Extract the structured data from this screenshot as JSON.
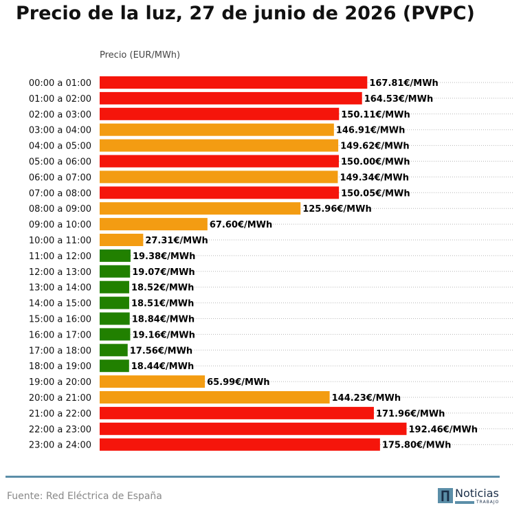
{
  "title": "Precio de la luz, 27 de junio de 2026 (PVPC)",
  "source": "Fuente: Red Eléctrica de España",
  "logo": {
    "name": "Noticias",
    "sub": "TRABAJO"
  },
  "colors": {
    "high": "#f5150b",
    "medium": "#f39c12",
    "low": "#218000"
  },
  "chart_data": {
    "type": "bar",
    "orientation": "horizontal",
    "ylabel": "Precio (EUR/MWh)",
    "unit_suffix": "€/MWh",
    "grid": "dotted horizontal per row",
    "categories": [
      "00:00 a 01:00",
      "01:00 a 02:00",
      "02:00 a 03:00",
      "03:00 a 04:00",
      "04:00 a 05:00",
      "05:00 a 06:00",
      "06:00 a 07:00",
      "07:00 a 08:00",
      "08:00 a 09:00",
      "09:00 a 10:00",
      "10:00 a 11:00",
      "11:00 a 12:00",
      "12:00 a 13:00",
      "13:00 a 14:00",
      "14:00 a 15:00",
      "15:00 a 16:00",
      "16:00 a 17:00",
      "17:00 a 18:00",
      "18:00 a 19:00",
      "19:00 a 20:00",
      "20:00 a 21:00",
      "21:00 a 22:00",
      "22:00 a 23:00",
      "23:00 a 24:00"
    ],
    "values": [
      167.81,
      164.53,
      150.11,
      146.91,
      149.62,
      150.0,
      149.34,
      150.05,
      125.96,
      67.6,
      27.31,
      19.38,
      19.07,
      18.52,
      18.51,
      18.84,
      19.16,
      17.56,
      18.44,
      65.99,
      144.23,
      171.96,
      192.46,
      175.8
    ],
    "value_labels": [
      "167.81€/MWh",
      "164.53€/MWh",
      "150.11€/MWh",
      "146.91€/MWh",
      "149.62€/MWh",
      "150.00€/MWh",
      "149.34€/MWh",
      "150.05€/MWh",
      "125.96€/MWh",
      "67.60€/MWh",
      "27.31€/MWh",
      "19.38€/MWh",
      "19.07€/MWh",
      "18.52€/MWh",
      "18.51€/MWh",
      "18.84€/MWh",
      "19.16€/MWh",
      "17.56€/MWh",
      "18.44€/MWh",
      "65.99€/MWh",
      "144.23€/MWh",
      "171.96€/MWh",
      "192.46€/MWh",
      "175.80€/MWh"
    ],
    "levels": [
      "high",
      "high",
      "high",
      "medium",
      "medium",
      "high",
      "medium",
      "high",
      "medium",
      "medium",
      "medium",
      "low",
      "low",
      "low",
      "low",
      "low",
      "low",
      "low",
      "low",
      "medium",
      "medium",
      "high",
      "high",
      "high"
    ]
  }
}
